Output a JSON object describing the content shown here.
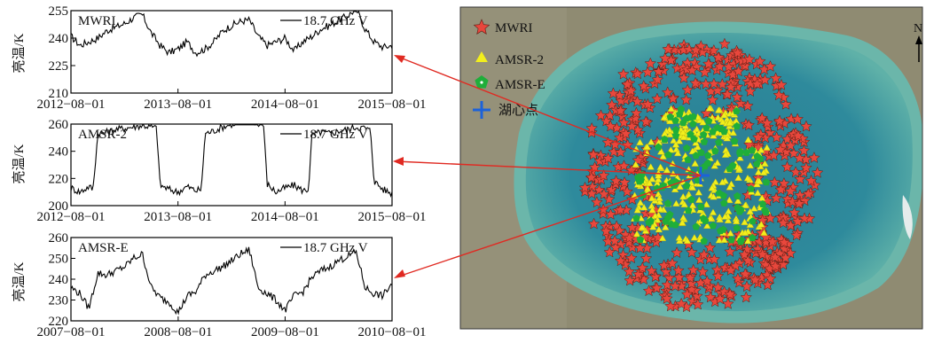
{
  "chart_data": [
    {
      "type": "line",
      "panel_label": "MWRI",
      "legend": "18.7 GHz V",
      "ylabel": "亮温/K",
      "ylim": [
        210,
        255
      ],
      "yticks": [
        210,
        225,
        240,
        255
      ],
      "xlim": [
        "2012-08-01",
        "2015-08-01"
      ],
      "xticks": [
        "2012-08-01",
        "2013-08-01",
        "2014-08-01",
        "2015-08-01"
      ],
      "series": [
        {
          "x": [
            "2012-08-01",
            "2012-09-01",
            "2012-10-01",
            "2012-11-01",
            "2012-12-01",
            "2013-01-01",
            "2013-02-01",
            "2013-03-01",
            "2013-04-01",
            "2013-05-01",
            "2013-06-01",
            "2013-07-01",
            "2013-08-01",
            "2013-09-01",
            "2013-10-01",
            "2013-11-01",
            "2013-12-01",
            "2014-01-01",
            "2014-02-01",
            "2014-03-01",
            "2014-04-01",
            "2014-05-01",
            "2014-06-01",
            "2014-07-01",
            "2014-08-01",
            "2014-09-01",
            "2014-10-01",
            "2014-11-01",
            "2014-12-01",
            "2015-01-01",
            "2015-02-01",
            "2015-03-01",
            "2015-04-01",
            "2015-05-01",
            "2015-06-01",
            "2015-07-01",
            "2015-08-01"
          ],
          "y": [
            241,
            236,
            238,
            240,
            244,
            246,
            248,
            251,
            253,
            243,
            236,
            232,
            234,
            238,
            232,
            234,
            238,
            244,
            247,
            249,
            250,
            241,
            236,
            238,
            240,
            233,
            238,
            241,
            245,
            247,
            250,
            252,
            256,
            245,
            238,
            235,
            236
          ]
        }
      ]
    },
    {
      "type": "line",
      "panel_label": "AMSR-2",
      "legend": "18.7 GHz V",
      "ylabel": "亮温/K",
      "ylim": [
        200,
        260
      ],
      "yticks": [
        200,
        220,
        240,
        260
      ],
      "xlim": [
        "2012-08-01",
        "2015-08-01"
      ],
      "xticks": [
        "2012-08-01",
        "2013-08-01",
        "2014-08-01",
        "2015-08-01"
      ],
      "series": [
        {
          "x": [
            "2012-08-01",
            "2012-09-01",
            "2012-10-01",
            "2012-10-15",
            "2012-11-01",
            "2012-12-01",
            "2013-01-01",
            "2013-02-01",
            "2013-03-01",
            "2013-04-01",
            "2013-05-01",
            "2013-05-20",
            "2013-06-01",
            "2013-07-01",
            "2013-08-01",
            "2013-09-01",
            "2013-10-01",
            "2013-10-20",
            "2013-11-01",
            "2013-12-01",
            "2014-01-01",
            "2014-02-01",
            "2014-03-01",
            "2014-04-01",
            "2014-05-01",
            "2014-05-20",
            "2014-06-01",
            "2014-07-01",
            "2014-08-01",
            "2014-09-01",
            "2014-10-01",
            "2014-10-20",
            "2014-11-01",
            "2014-12-01",
            "2015-01-01",
            "2015-02-01",
            "2015-03-01",
            "2015-04-01",
            "2015-05-01",
            "2015-05-20",
            "2015-06-01",
            "2015-07-01",
            "2015-08-01"
          ],
          "y": [
            213,
            210,
            214,
            212,
            253,
            254,
            256,
            257,
            258,
            259,
            258,
            257,
            215,
            212,
            210,
            214,
            211,
            212,
            253,
            255,
            258,
            260,
            262,
            263,
            261,
            259,
            216,
            210,
            213,
            215,
            211,
            212,
            252,
            254,
            253,
            255,
            256,
            258,
            257,
            255,
            218,
            212,
            209
          ]
        }
      ]
    },
    {
      "type": "line",
      "panel_label": "AMSR-E",
      "legend": "18.7 GHz V",
      "ylabel": "亮温/K",
      "ylim": [
        220,
        260
      ],
      "yticks": [
        220,
        230,
        240,
        250,
        260
      ],
      "xlim": [
        "2007-08-01",
        "2010-08-01"
      ],
      "xticks": [
        "2007-08-01",
        "2008-08-01",
        "2009-08-01",
        "2010-08-01"
      ],
      "series": [
        {
          "x": [
            "2007-08-01",
            "2007-09-01",
            "2007-10-01",
            "2007-11-01",
            "2007-12-01",
            "2008-01-01",
            "2008-02-01",
            "2008-03-01",
            "2008-04-01",
            "2008-05-01",
            "2008-06-01",
            "2008-07-01",
            "2008-08-01",
            "2008-09-01",
            "2008-10-01",
            "2008-11-01",
            "2008-12-01",
            "2009-01-01",
            "2009-02-01",
            "2009-03-01",
            "2009-04-01",
            "2009-05-01",
            "2009-06-01",
            "2009-07-01",
            "2009-08-01",
            "2009-09-01",
            "2009-10-01",
            "2009-11-01",
            "2009-12-01",
            "2010-01-01",
            "2010-02-01",
            "2010-03-01",
            "2010-04-01",
            "2010-05-01",
            "2010-06-01",
            "2010-07-01",
            "2010-08-01"
          ],
          "y": [
            236,
            233,
            226,
            243,
            242,
            244,
            246,
            250,
            252,
            236,
            231,
            229,
            224,
            232,
            234,
            242,
            244,
            246,
            249,
            252,
            254,
            236,
            233,
            230,
            225,
            232,
            234,
            241,
            244,
            246,
            249,
            251,
            253,
            236,
            233,
            232,
            238
          ]
        }
      ]
    }
  ],
  "map": {
    "legend": [
      {
        "label": "MWRI",
        "symbol": "star",
        "color": "#e8473c"
      },
      {
        "label": "AMSR-2",
        "symbol": "triangle",
        "color": "#f2ef1c"
      },
      {
        "label": "AMSR-E",
        "symbol": "pentagon",
        "color": "#1fae3a"
      },
      {
        "label": "湖心点",
        "symbol": "cross",
        "color": "#1d62d9"
      }
    ],
    "north_label": "N",
    "colors": {
      "water": "#2d8699",
      "water_shallow": "#5fb1a8",
      "land": "#8f8b72",
      "arrow": "#e02a22"
    }
  }
}
